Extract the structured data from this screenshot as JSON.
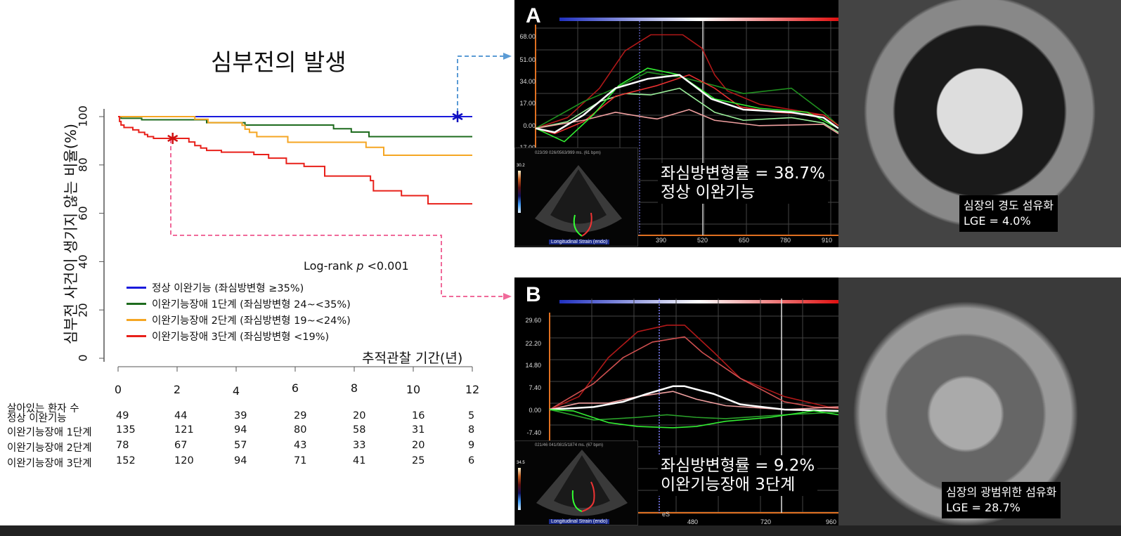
{
  "title": "심부전의 발생",
  "chart_data": {
    "type": "line",
    "subtype": "kaplan-meier step",
    "title": "심부전의 발생",
    "ylabel": "심부전 사건이 생기지 않는 비율(%)",
    "xlabel": "추적관찰 기간(년)",
    "xlim": [
      0,
      12
    ],
    "ylim": [
      0,
      100
    ],
    "xticks": [
      "0",
      "2",
      "4",
      "6",
      "8",
      "10",
      "12"
    ],
    "yticks": [
      "0",
      "20",
      "40",
      "60",
      "80",
      "100"
    ],
    "annotation": "Log-rank",
    "annotation_p": "p",
    "annotation_val": "<0.001",
    "legend_position": "bottom-left",
    "series": [
      {
        "name": "정상 이완기능 (좌심방변형 ≥35%)",
        "color": "#1a1adc",
        "points": [
          [
            0,
            100
          ],
          [
            12,
            100
          ]
        ],
        "marker": [
          11.5,
          100
        ]
      },
      {
        "name": "이완기능장애 1단계 (좌심방변형 24~<35%)",
        "color": "#1e6b1e",
        "points": [
          [
            0,
            100
          ],
          [
            0.1,
            99.3
          ],
          [
            0.8,
            98.7
          ],
          [
            3.0,
            97.5
          ],
          [
            4.3,
            96.5
          ],
          [
            7.3,
            95
          ],
          [
            7.9,
            93.6
          ],
          [
            8.5,
            91.7
          ],
          [
            12,
            91.7
          ]
        ]
      },
      {
        "name": "이완기능장애 2단계 (좌심방변형 19~<24%)",
        "color": "#f5a623",
        "points": [
          [
            0,
            100
          ],
          [
            2.6,
            98.9
          ],
          [
            3.05,
            97.5
          ],
          [
            4.2,
            96.4
          ],
          [
            4.3,
            94.8
          ],
          [
            4.45,
            93.5
          ],
          [
            4.7,
            91.7
          ],
          [
            5.75,
            89.4
          ],
          [
            8.4,
            87.3
          ],
          [
            9.0,
            84
          ],
          [
            12,
            84
          ]
        ]
      },
      {
        "name": "이완기능장애 3단계 (좌심방변형 <19%)",
        "color": "#e8201a",
        "points": [
          [
            0,
            100
          ],
          [
            0.05,
            98
          ],
          [
            0.1,
            96.5
          ],
          [
            0.2,
            95.5
          ],
          [
            0.5,
            94.5
          ],
          [
            0.7,
            93.5
          ],
          [
            0.9,
            92.6
          ],
          [
            1.0,
            91.7
          ],
          [
            1.2,
            91
          ],
          [
            2.4,
            89.5
          ],
          [
            2.6,
            88
          ],
          [
            2.8,
            87
          ],
          [
            3.0,
            86
          ],
          [
            3.5,
            85.3
          ],
          [
            4.6,
            84.3
          ],
          [
            5.1,
            82.8
          ],
          [
            5.7,
            80.6
          ],
          [
            6.3,
            79.4
          ],
          [
            7.0,
            75.4
          ],
          [
            8.55,
            73.5
          ],
          [
            8.65,
            69.3
          ],
          [
            9.6,
            67.3
          ],
          [
            10.5,
            63.9
          ],
          [
            12,
            63.9
          ]
        ],
        "marker": [
          1.85,
          91
        ]
      }
    ]
  },
  "risk_table": {
    "header": "살아있는 환자 수",
    "rows": [
      {
        "label": "정상 이완기능",
        "values": [
          "49",
          "44",
          "39",
          "29",
          "20",
          "16",
          "5"
        ]
      },
      {
        "label": "이완기능장애 1단계",
        "values": [
          "135",
          "121",
          "94",
          "80",
          "58",
          "31",
          "8"
        ]
      },
      {
        "label": "이완기능장애 2단계",
        "values": [
          "78",
          "67",
          "57",
          "43",
          "33",
          "20",
          "9"
        ]
      },
      {
        "label": "이완기능장애 3단계",
        "values": [
          "152",
          "120",
          "94",
          "71",
          "41",
          "25",
          "6"
        ]
      }
    ]
  },
  "panel_a": {
    "label": "A",
    "yticks": [
      "68.00",
      "51.00",
      "34.00",
      "17.00",
      "0.00",
      "-17.00"
    ],
    "xticks": [
      "390",
      "520",
      "650",
      "780",
      "910"
    ],
    "overlay_line1": "좌심방변형률 = 38.7%",
    "overlay_line2": "정상 이완기능",
    "inset_header": "023/39 026/0563/999 ms. (61 bpm)",
    "inset_scale": "30.2",
    "inset_caption": "Longitudinal Strain (endo)",
    "strain_data": {
      "xlim": [
        0,
        947
      ],
      "ylim": [
        -17,
        75
      ],
      "series": [
        {
          "color": "#b01818",
          "points": [
            [
              0,
              0
            ],
            [
              100,
              8
            ],
            [
              200,
              30
            ],
            [
              280,
              58
            ],
            [
              360,
              70
            ],
            [
              460,
              70
            ],
            [
              520,
              60
            ],
            [
              560,
              40
            ],
            [
              600,
              28
            ],
            [
              700,
              18
            ],
            [
              800,
              14
            ],
            [
              900,
              10
            ],
            [
              947,
              2
            ]
          ]
        },
        {
          "color": "#1f8f1f",
          "points": [
            [
              0,
              0
            ],
            [
              150,
              20
            ],
            [
              250,
              30
            ],
            [
              350,
              42
            ],
            [
              460,
              38
            ],
            [
              560,
              32
            ],
            [
              650,
              26
            ],
            [
              800,
              30
            ],
            [
              900,
              12
            ],
            [
              947,
              2
            ]
          ]
        },
        {
          "color": "#9af09a",
          "points": [
            [
              0,
              0
            ],
            [
              100,
              5
            ],
            [
              200,
              20
            ],
            [
              280,
              26
            ],
            [
              360,
              25
            ],
            [
              450,
              30
            ],
            [
              560,
              12
            ],
            [
              650,
              6
            ],
            [
              800,
              8
            ],
            [
              900,
              4
            ],
            [
              947,
              -3
            ]
          ]
        },
        {
          "color": "#e83030",
          "points": [
            [
              0,
              0
            ],
            [
              60,
              -4
            ],
            [
              150,
              5
            ],
            [
              250,
              24
            ],
            [
              380,
              32
            ],
            [
              480,
              40
            ],
            [
              560,
              30
            ],
            [
              640,
              16
            ],
            [
              750,
              12
            ],
            [
              900,
              10
            ],
            [
              947,
              2
            ]
          ]
        },
        {
          "color": "#f0a0a0",
          "points": [
            [
              0,
              0
            ],
            [
              150,
              6
            ],
            [
              250,
              12
            ],
            [
              350,
              8
            ],
            [
              380,
              7
            ],
            [
              480,
              14
            ],
            [
              560,
              6
            ],
            [
              700,
              2
            ],
            [
              900,
              3
            ],
            [
              947,
              -4
            ]
          ]
        },
        {
          "color": "#33ee33",
          "points": [
            [
              0,
              0
            ],
            [
              90,
              -10
            ],
            [
              180,
              10
            ],
            [
              260,
              32
            ],
            [
              350,
              45
            ],
            [
              450,
              40
            ],
            [
              560,
              22
            ],
            [
              700,
              15
            ],
            [
              850,
              12
            ],
            [
              947,
              0
            ]
          ]
        },
        {
          "color": "#ffffff",
          "points": [
            [
              0,
              0
            ],
            [
              60,
              -3
            ],
            [
              150,
              10
            ],
            [
              250,
              30
            ],
            [
              350,
              37
            ],
            [
              450,
              40
            ],
            [
              550,
              22
            ],
            [
              650,
              14
            ],
            [
              800,
              12
            ],
            [
              900,
              8
            ],
            [
              947,
              0
            ]
          ]
        }
      ]
    }
  },
  "panel_b": {
    "label": "B",
    "yticks": [
      "29.60",
      "22.20",
      "14.80",
      "7.40",
      "0.00",
      "-7.40"
    ],
    "xticks": [
      "480",
      "720",
      "960"
    ],
    "es_label": "eS",
    "overlay_line1": "좌심방변형률 = 9.2%",
    "overlay_line2": "이완기능장애 3단계",
    "inset_header": "021/46 041/0815/1874 ms. (67 bpm)",
    "inset_scale": "34.5",
    "inset_caption": "Longitudinal Strain (endo)",
    "strain_data": {
      "xlim": [
        0,
        984
      ],
      "ylim": [
        -10,
        36
      ],
      "series": [
        {
          "color": "#b01818",
          "points": [
            [
              0,
              0
            ],
            [
              100,
              5
            ],
            [
              200,
              20
            ],
            [
              300,
              30
            ],
            [
              400,
              32.5
            ],
            [
              460,
              32.5
            ],
            [
              560,
              22
            ],
            [
              650,
              12
            ],
            [
              800,
              5
            ],
            [
              950,
              1
            ],
            [
              984,
              1
            ]
          ]
        },
        {
          "color": "#d05050",
          "points": [
            [
              0,
              0
            ],
            [
              150,
              10
            ],
            [
              250,
              20
            ],
            [
              350,
              26
            ],
            [
              460,
              28
            ],
            [
              520,
              22
            ],
            [
              650,
              12
            ],
            [
              800,
              3
            ],
            [
              900,
              1
            ],
            [
              984,
              0.5
            ]
          ]
        },
        {
          "color": "#f0a0a0",
          "points": [
            [
              0,
              0
            ],
            [
              100,
              2.5
            ],
            [
              200,
              2.5
            ],
            [
              300,
              5
            ],
            [
              420,
              7
            ],
            [
              500,
              4
            ],
            [
              600,
              1.5
            ],
            [
              800,
              0
            ],
            [
              984,
              1
            ]
          ]
        },
        {
          "color": "#ffffff",
          "points": [
            [
              0,
              0
            ],
            [
              150,
              1
            ],
            [
              250,
              3
            ],
            [
              330,
              6
            ],
            [
              420,
              9
            ],
            [
              460,
              9
            ],
            [
              560,
              6
            ],
            [
              650,
              2
            ],
            [
              800,
              0
            ],
            [
              984,
              -0.5
            ]
          ]
        },
        {
          "color": "#2aa02a",
          "points": [
            [
              0,
              0
            ],
            [
              150,
              -4
            ],
            [
              300,
              -3
            ],
            [
              400,
              -2
            ],
            [
              500,
              -3
            ],
            [
              600,
              -3.5
            ],
            [
              800,
              -2
            ],
            [
              984,
              -1
            ]
          ]
        },
        {
          "color": "#33ee33",
          "points": [
            [
              0,
              0
            ],
            [
              80,
              -0.5
            ],
            [
              200,
              -5
            ],
            [
              300,
              -6.5
            ],
            [
              420,
              -7
            ],
            [
              500,
              -6.5
            ],
            [
              600,
              -4.5
            ],
            [
              750,
              -3
            ],
            [
              900,
              -0.5
            ],
            [
              984,
              -2
            ]
          ]
        }
      ]
    }
  },
  "mri_a": {
    "line1": "심장의 경도 섬유화",
    "line2": "LGE = 4.0%"
  },
  "mri_b": {
    "line1": "심장의 광범위한 섬유화",
    "line2": "LGE = 28.7%"
  },
  "colors": {
    "blue_connector": "#5b9bd5",
    "pink_connector": "#f06a9a"
  }
}
